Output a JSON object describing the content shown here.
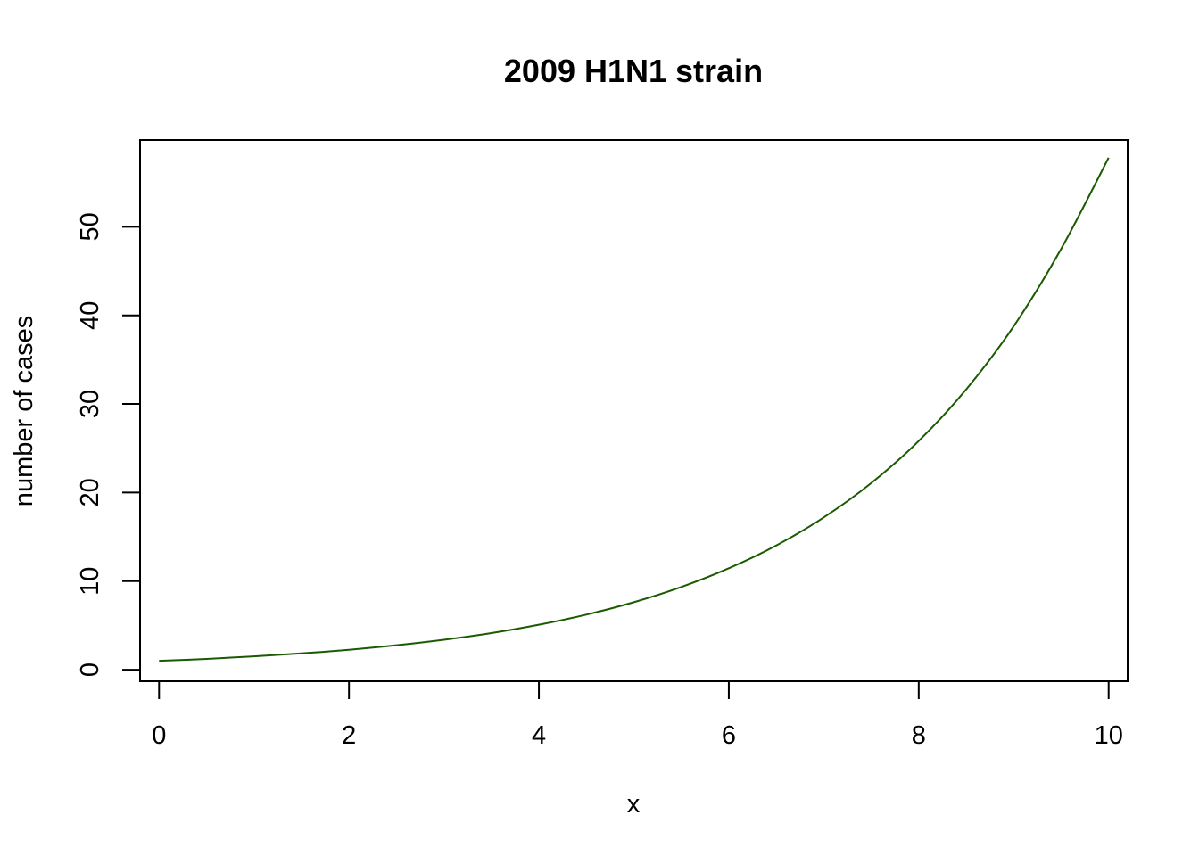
{
  "chart_data": {
    "type": "line",
    "title": "2009 H1N1 strain",
    "xlabel": "x",
    "ylabel": "number of cases",
    "xlim": [
      -0.2,
      10.2
    ],
    "ylim": [
      -1.3,
      59.8
    ],
    "x_ticks": [
      0,
      2,
      4,
      6,
      8,
      10
    ],
    "y_ticks": [
      0,
      10,
      20,
      30,
      40,
      50
    ],
    "grid": false,
    "legend": "none",
    "series": [
      {
        "color": "#1a5a00",
        "x": [
          0,
          0.5,
          1,
          1.5,
          2,
          2.5,
          3,
          3.5,
          4,
          4.5,
          5,
          5.5,
          6,
          6.5,
          7,
          7.5,
          8,
          8.5,
          9,
          9.5,
          10
        ],
        "y": [
          1.0,
          1.22,
          1.5,
          1.84,
          2.25,
          2.76,
          3.38,
          4.14,
          5.08,
          6.22,
          7.62,
          9.34,
          11.45,
          14.03,
          17.19,
          21.07,
          25.82,
          31.64,
          38.77,
          47.51,
          57.8
        ]
      }
    ]
  }
}
